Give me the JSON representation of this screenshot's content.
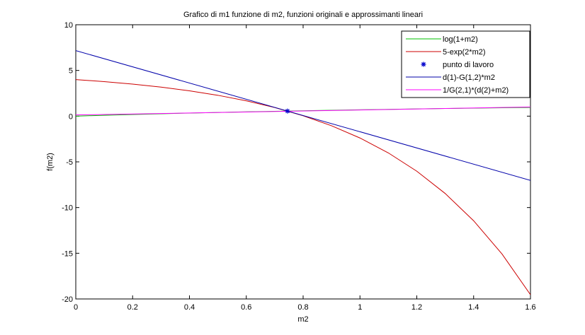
{
  "chart_data": {
    "type": "line",
    "title": "Grafico di m1 funzione di m2, funzioni originali e approssimanti lineari",
    "xlabel": "m2",
    "ylabel": "f(m2)",
    "xlim": [
      0,
      1.6
    ],
    "ylim": [
      -20,
      10
    ],
    "xticks": [
      0,
      0.2,
      0.4,
      0.6,
      0.8,
      1,
      1.2,
      1.4,
      1.6
    ],
    "yticks": [
      -20,
      -15,
      -10,
      -5,
      0,
      5,
      10
    ],
    "xtick_labels": [
      "0",
      "0.2",
      "0.4",
      "0.6",
      "0.8",
      "1",
      "1.2",
      "1.4",
      "1.6"
    ],
    "ytick_labels": [
      "-20",
      "-15",
      "-10",
      "-5",
      "0",
      "5",
      "10"
    ],
    "grid": false,
    "legend_position": "top-right",
    "series": [
      {
        "name": "log(1+m2)",
        "color": "#00c000",
        "style": "line",
        "x": [
          0,
          0.1,
          0.2,
          0.3,
          0.4,
          0.5,
          0.6,
          0.7,
          0.8,
          0.9,
          1.0,
          1.1,
          1.2,
          1.3,
          1.4,
          1.5,
          1.6
        ],
        "y": [
          0,
          0.095,
          0.182,
          0.262,
          0.336,
          0.405,
          0.47,
          0.531,
          0.588,
          0.642,
          0.693,
          0.742,
          0.788,
          0.833,
          0.875,
          0.916,
          0.956
        ]
      },
      {
        "name": "5-exp(2*m2)",
        "color": "#cc0000",
        "style": "line",
        "x": [
          0,
          0.1,
          0.2,
          0.3,
          0.4,
          0.5,
          0.6,
          0.7,
          0.8,
          0.9,
          1.0,
          1.1,
          1.2,
          1.3,
          1.4,
          1.5,
          1.6
        ],
        "y": [
          4.0,
          3.779,
          3.508,
          3.178,
          2.774,
          2.282,
          1.68,
          0.945,
          0.047,
          -1.05,
          -2.389,
          -4.025,
          -6.023,
          -8.464,
          -11.445,
          -15.086,
          -19.533
        ]
      },
      {
        "name": "punto di lavoro",
        "color": "#0000cc",
        "style": "marker",
        "x": [
          0.745
        ],
        "y": [
          0.555
        ]
      },
      {
        "name": "d(1)-G(1,2)*m2",
        "color": "#0000aa",
        "style": "line",
        "x": [
          0,
          1.6
        ],
        "y": [
          7.17,
          -7.03
        ]
      },
      {
        "name": "1/G(2,1)*(d(2)+m2)",
        "color": "#ff00ff",
        "style": "line",
        "x": [
          0,
          1.6
        ],
        "y": [
          0.128,
          1.0
        ]
      }
    ]
  }
}
